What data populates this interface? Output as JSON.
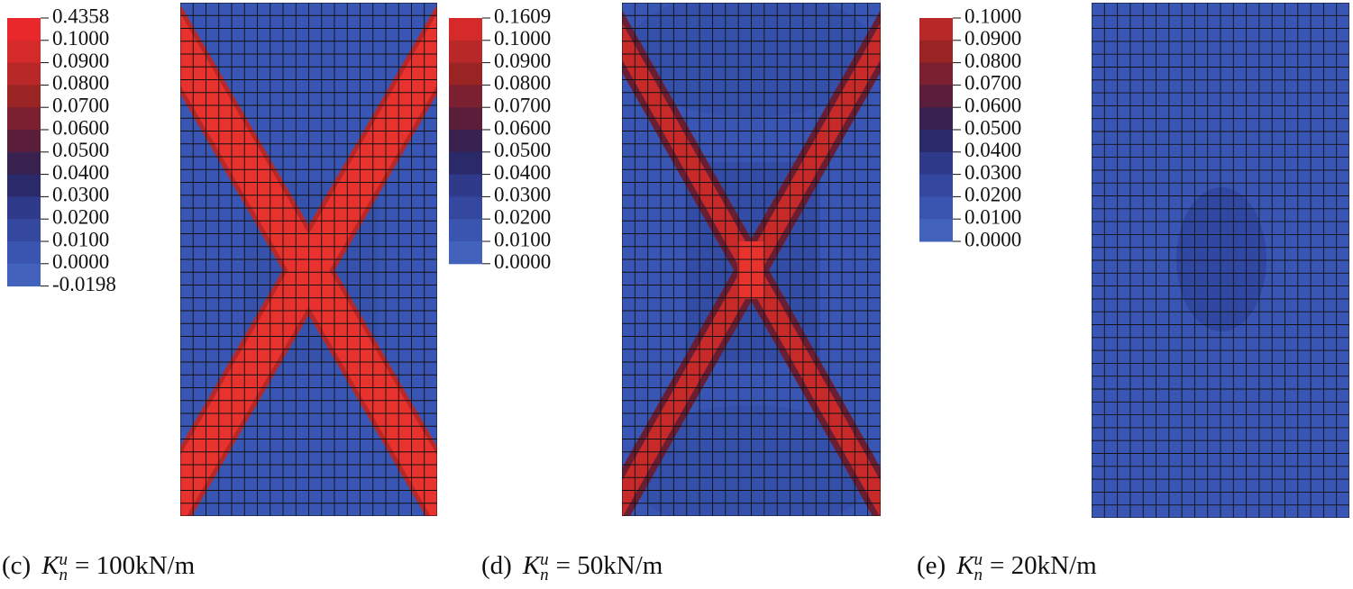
{
  "panels": [
    {
      "legend": [
        "0.4358",
        "0.1000",
        "0.0900",
        "0.0800",
        "0.0700",
        "0.0600",
        "0.0500",
        "0.0400",
        "0.0300",
        "0.0200",
        "0.0100",
        "0.0000",
        "-0.0198"
      ],
      "caption": {
        "label": "(c)",
        "symbol": "K",
        "subscript": "n",
        "superscript": "u",
        "equation": "= 100kN/m"
      }
    },
    {
      "legend": [
        "0.1609",
        "0.1000",
        "0.0900",
        "0.0800",
        "0.0700",
        "0.0600",
        "0.0500",
        "0.0400",
        "0.0300",
        "0.0200",
        "0.0100",
        "0.0000"
      ],
      "caption": {
        "label": "(d)",
        "symbol": "K",
        "subscript": "n",
        "superscript": "u",
        "equation": "= 50kN/m"
      }
    },
    {
      "legend": [
        "0.1000",
        "0.0900",
        "0.0800",
        "0.0700",
        "0.0600",
        "0.0500",
        "0.0400",
        "0.0300",
        "0.0200",
        "0.0100",
        "0.0000"
      ],
      "caption": {
        "label": "(e)",
        "symbol": "K",
        "subscript": "n",
        "superscript": "u",
        "equation": "= 20kN/m"
      }
    }
  ]
}
